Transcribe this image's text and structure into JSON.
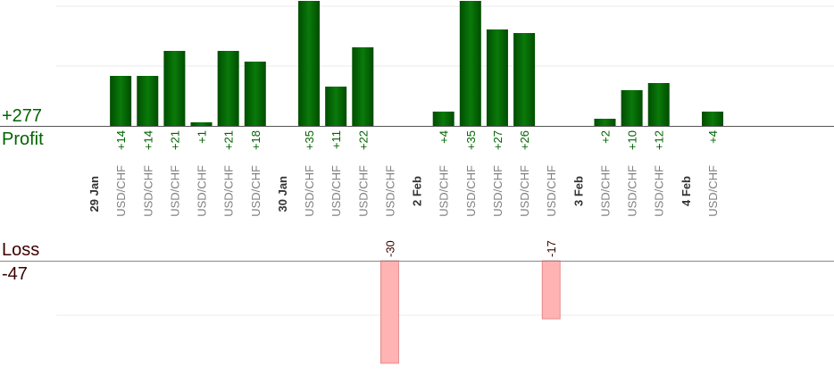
{
  "labels": {
    "profit_total": "+277",
    "profit": "Profit",
    "loss": "Loss",
    "loss_total": "-47"
  },
  "colors": {
    "profit_bar_dark": "#004d00",
    "profit_bar_light": "#0a7a0a",
    "profit_text": "#006400",
    "loss_bar": "#ffb3b3",
    "loss_bar_stroke": "#e07c7c",
    "loss_text": "#3b0000",
    "pair_text": "#808080",
    "date_text": "#333333"
  },
  "chart_data": {
    "type": "bar",
    "title": "",
    "xlabel": "",
    "ylabel": "",
    "grid": true,
    "profit_ylim": [
      0,
      40
    ],
    "loss_ylim": [
      -34,
      0
    ],
    "slots": [
      {
        "kind": "date",
        "label": "29 Jan"
      },
      {
        "kind": "trade",
        "pair": "USD/CHF",
        "value": 14,
        "label": "+14"
      },
      {
        "kind": "trade",
        "pair": "USD/CHF",
        "value": 14,
        "label": "+14"
      },
      {
        "kind": "trade",
        "pair": "USD/CHF",
        "value": 21,
        "label": "+21"
      },
      {
        "kind": "trade",
        "pair": "USD/CHF",
        "value": 1,
        "label": "+1"
      },
      {
        "kind": "trade",
        "pair": "USD/CHF",
        "value": 21,
        "label": "+21"
      },
      {
        "kind": "trade",
        "pair": "USD/CHF",
        "value": 18,
        "label": "+18"
      },
      {
        "kind": "date",
        "label": "30 Jan"
      },
      {
        "kind": "trade",
        "pair": "USD/CHF",
        "value": 35,
        "label": "+35"
      },
      {
        "kind": "trade",
        "pair": "USD/CHF",
        "value": 11,
        "label": "+11"
      },
      {
        "kind": "trade",
        "pair": "USD/CHF",
        "value": 22,
        "label": "+22"
      },
      {
        "kind": "trade",
        "pair": "USD/CHF",
        "value": -30,
        "label": "-30"
      },
      {
        "kind": "date",
        "label": "2 Feb"
      },
      {
        "kind": "trade",
        "pair": "USD/CHF",
        "value": 4,
        "label": "+4"
      },
      {
        "kind": "trade",
        "pair": "USD/CHF",
        "value": 35,
        "label": "+35"
      },
      {
        "kind": "trade",
        "pair": "USD/CHF",
        "value": 27,
        "label": "+27"
      },
      {
        "kind": "trade",
        "pair": "USD/CHF",
        "value": 26,
        "label": "+26"
      },
      {
        "kind": "trade",
        "pair": "USD/CHF",
        "value": -17,
        "label": "-17"
      },
      {
        "kind": "date",
        "label": "3 Feb"
      },
      {
        "kind": "trade",
        "pair": "USD/CHF",
        "value": 2,
        "label": "+2"
      },
      {
        "kind": "trade",
        "pair": "USD/CHF",
        "value": 10,
        "label": "+10"
      },
      {
        "kind": "trade",
        "pair": "USD/CHF",
        "value": 12,
        "label": "+12"
      },
      {
        "kind": "date",
        "label": "4 Feb"
      },
      {
        "kind": "trade",
        "pair": "USD/CHF",
        "value": 4,
        "label": "+4"
      }
    ]
  }
}
